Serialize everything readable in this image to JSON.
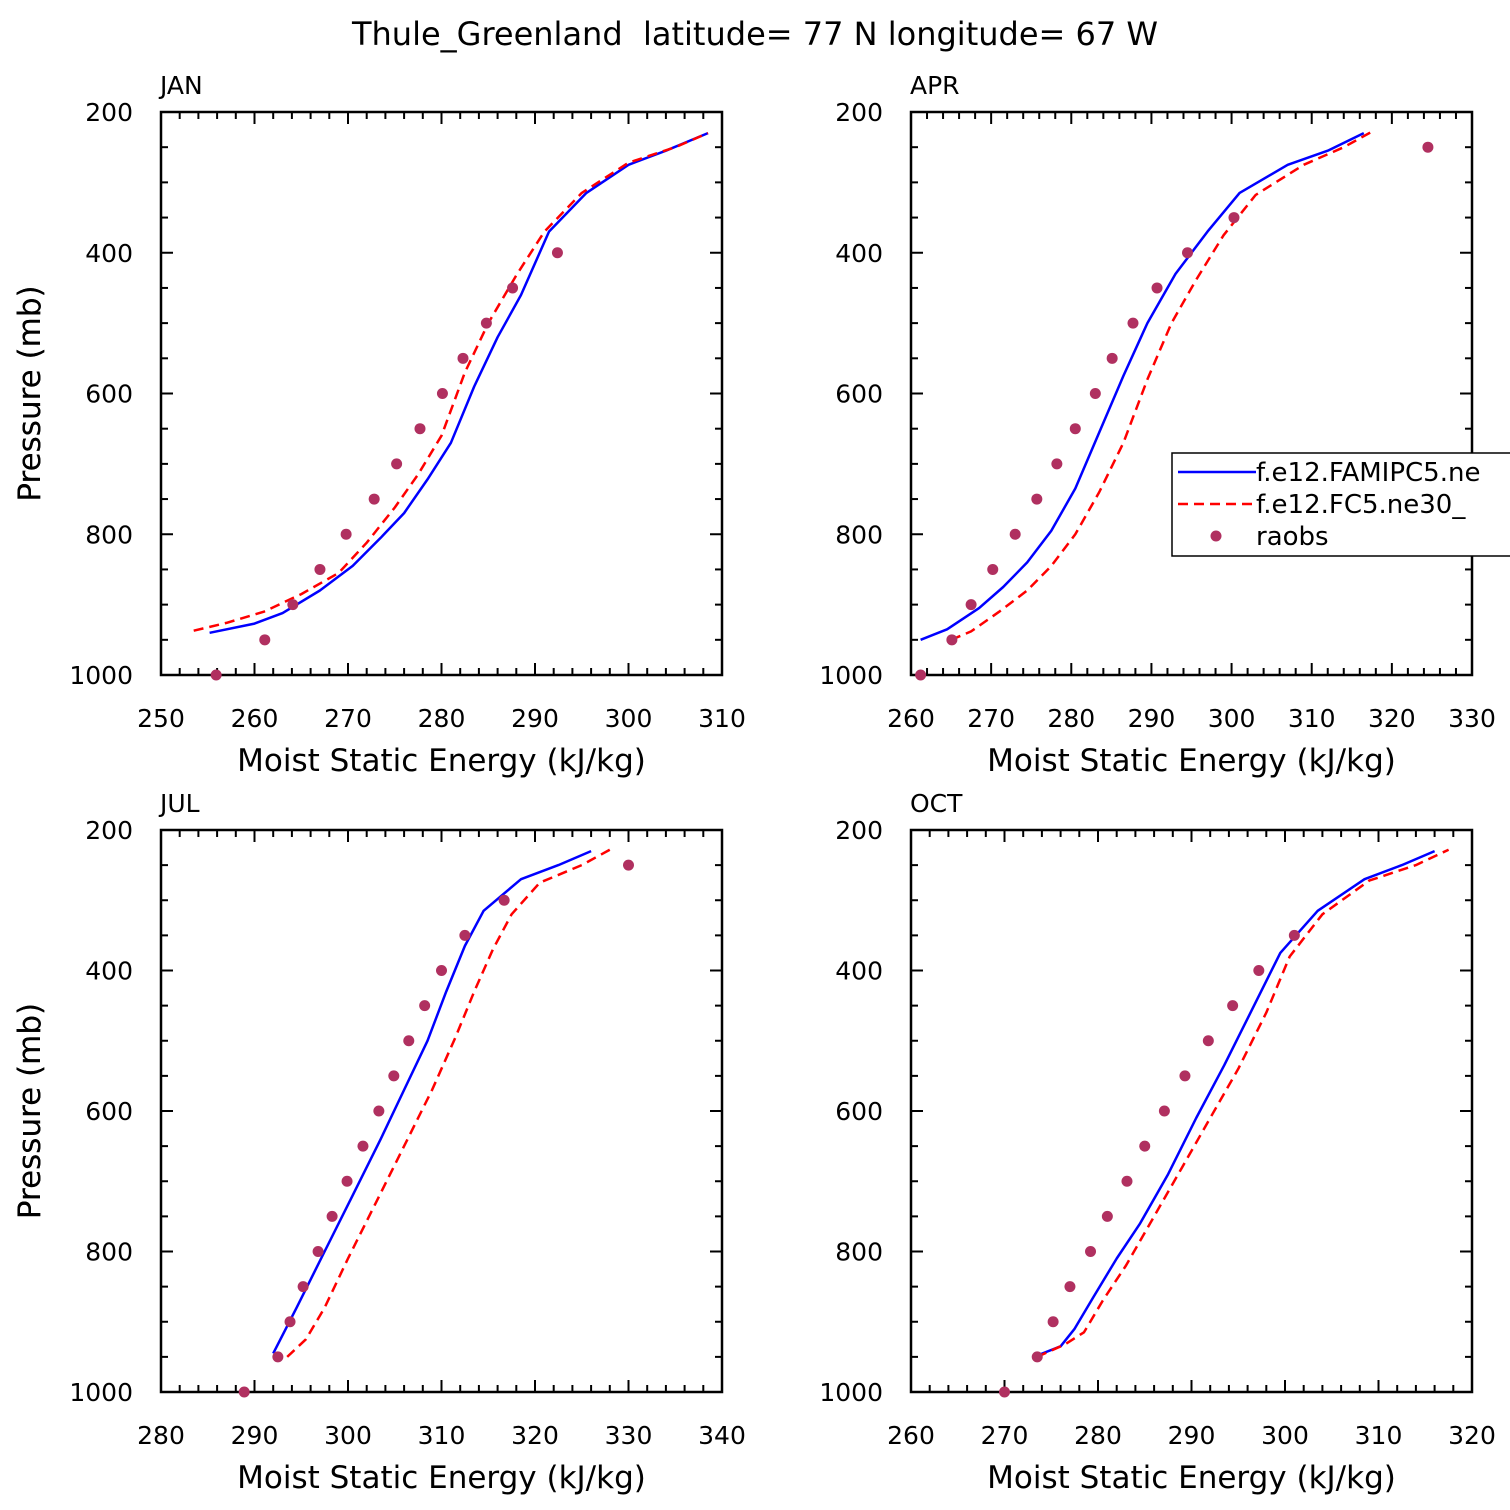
{
  "figure": {
    "title": "Thule_Greenland  latitude= 77 N longitude= 67 W"
  },
  "legend": {
    "entries": [
      {
        "label": "f.e12.FAMIPC5.ne",
        "color": "#0000ff",
        "style": "solid"
      },
      {
        "label": "f.e12.FC5.ne30_",
        "color": "#ff0000",
        "style": "dashed"
      },
      {
        "label": "raobs",
        "color": "#b03060",
        "style": "marker"
      }
    ]
  },
  "chart_data": [
    {
      "type": "line",
      "panel": "JAN",
      "xlabel": "Moist Static Energy (kJ/kg)",
      "ylabel": "Pressure (mb)",
      "xlim": [
        250,
        310
      ],
      "ylim": [
        1000,
        200
      ],
      "x_ticks": [
        250,
        260,
        270,
        280,
        290,
        300,
        310
      ],
      "y_ticks": [
        200,
        400,
        600,
        800,
        1000
      ],
      "series": [
        {
          "name": "f.e12.FAMIPC5.ne",
          "points": [
            [
              255.2,
              940
            ],
            [
              260,
              927
            ],
            [
              263,
              912
            ],
            [
              267,
              880
            ],
            [
              270.5,
              845
            ],
            [
              273.5,
              805
            ],
            [
              276,
              770
            ],
            [
              278.5,
              722
            ],
            [
              281,
              670
            ],
            [
              283.5,
              590
            ],
            [
              286,
              520
            ],
            [
              288.5,
              460
            ],
            [
              291.5,
              370
            ],
            [
              295.5,
              315
            ],
            [
              300,
              275
            ],
            [
              304,
              255
            ],
            [
              308.5,
              230
            ]
          ]
        },
        {
          "name": "f.e12.FC5.ne30_",
          "points": [
            [
              253.5,
              937
            ],
            [
              257,
              926
            ],
            [
              261,
              910
            ],
            [
              265,
              885
            ],
            [
              269,
              855
            ],
            [
              272,
              812
            ],
            [
              275,
              762
            ],
            [
              277.5,
              715
            ],
            [
              280,
              660
            ],
            [
              282.5,
              570
            ],
            [
              285,
              500
            ],
            [
              288,
              432
            ],
            [
              291,
              370
            ],
            [
              295,
              315
            ],
            [
              300,
              272
            ],
            [
              305,
              250
            ],
            [
              308.5,
              230
            ]
          ]
        },
        {
          "name": "raobs",
          "points": [
            [
              255.9,
              1000
            ],
            [
              261.1,
              950
            ],
            [
              264.1,
              900
            ],
            [
              267,
              850
            ],
            [
              269.8,
              800
            ],
            [
              272.8,
              750
            ],
            [
              275.2,
              700
            ],
            [
              277.7,
              650
            ],
            [
              280.1,
              600
            ],
            [
              282.3,
              550
            ],
            [
              284.8,
              500
            ],
            [
              287.6,
              450
            ],
            [
              292.4,
              400
            ]
          ]
        }
      ]
    },
    {
      "type": "line",
      "panel": "APR",
      "xlabel": "Moist Static Energy (kJ/kg)",
      "ylabel": "Pressure (mb)",
      "xlim": [
        260,
        330
      ],
      "ylim": [
        1000,
        200
      ],
      "x_ticks": [
        260,
        270,
        280,
        290,
        300,
        310,
        320,
        330
      ],
      "y_ticks": [
        200,
        400,
        600,
        800,
        1000
      ],
      "series": [
        {
          "name": "f.e12.FAMIPC5.ne",
          "points": [
            [
              261.2,
              950
            ],
            [
              264.5,
              935
            ],
            [
              268.5,
              905
            ],
            [
              271.5,
              875
            ],
            [
              274.5,
              840
            ],
            [
              277.5,
              795
            ],
            [
              280.5,
              735
            ],
            [
              283.5,
              655
            ],
            [
              286.5,
              575
            ],
            [
              289.5,
              500
            ],
            [
              293,
              430
            ],
            [
              297,
              370
            ],
            [
              301,
              315
            ],
            [
              307,
              275
            ],
            [
              312,
              255
            ],
            [
              316.5,
              230
            ]
          ]
        },
        {
          "name": "f.e12.FC5.ne30_",
          "points": [
            [
              265,
              950
            ],
            [
              267.5,
              938
            ],
            [
              271,
              910
            ],
            [
              274.5,
              880
            ],
            [
              277.5,
              845
            ],
            [
              280.5,
              800
            ],
            [
              283.5,
              740
            ],
            [
              286.5,
              670
            ],
            [
              289.5,
              580
            ],
            [
              292.5,
              500
            ],
            [
              295.5,
              440
            ],
            [
              299,
              375
            ],
            [
              303,
              318
            ],
            [
              309,
              275
            ],
            [
              314,
              250
            ],
            [
              317.5,
              228
            ]
          ]
        },
        {
          "name": "raobs",
          "points": [
            [
              261.2,
              1000
            ],
            [
              265.1,
              950
            ],
            [
              267.5,
              900
            ],
            [
              270.2,
              850
            ],
            [
              273,
              800
            ],
            [
              275.7,
              750
            ],
            [
              278.2,
              700
            ],
            [
              280.5,
              650
            ],
            [
              283,
              600
            ],
            [
              285.1,
              550
            ],
            [
              287.7,
              500
            ],
            [
              290.7,
              450
            ],
            [
              294.5,
              400
            ],
            [
              300.3,
              350
            ],
            [
              324.5,
              250
            ]
          ]
        }
      ]
    },
    {
      "type": "line",
      "panel": "JUL",
      "xlabel": "Moist Static Energy (kJ/kg)",
      "ylabel": "Pressure (mb)",
      "xlim": [
        280,
        340
      ],
      "ylim": [
        1000,
        200
      ],
      "x_ticks": [
        280,
        290,
        300,
        310,
        320,
        330,
        340
      ],
      "y_ticks": [
        200,
        400,
        600,
        800,
        1000
      ],
      "series": [
        {
          "name": "f.e12.FAMIPC5.ne",
          "points": [
            [
              292,
              945
            ],
            [
              294.5,
              880
            ],
            [
              297.5,
              800
            ],
            [
              300.5,
              720
            ],
            [
              303.5,
              640
            ],
            [
              306,
              570
            ],
            [
              308.5,
              500
            ],
            [
              310.5,
              430
            ],
            [
              312.5,
              365
            ],
            [
              314.5,
              315
            ],
            [
              318.5,
              270
            ],
            [
              322.5,
              250
            ],
            [
              326,
              230
            ]
          ]
        },
        {
          "name": "f.e12.FC5.ne30_",
          "points": [
            [
              293.5,
              950
            ],
            [
              295.5,
              925
            ],
            [
              297.5,
              880
            ],
            [
              300,
              810
            ],
            [
              303,
              730
            ],
            [
              306,
              650
            ],
            [
              309,
              570
            ],
            [
              311.5,
              495
            ],
            [
              313.5,
              430
            ],
            [
              315.5,
              370
            ],
            [
              317.5,
              320
            ],
            [
              320.5,
              275
            ],
            [
              325,
              250
            ],
            [
              328,
              228
            ]
          ]
        },
        {
          "name": "raobs",
          "points": [
            [
              288.9,
              1000
            ],
            [
              292.5,
              950
            ],
            [
              293.8,
              900
            ],
            [
              295.2,
              850
            ],
            [
              296.8,
              800
            ],
            [
              298.3,
              750
            ],
            [
              299.9,
              700
            ],
            [
              301.6,
              650
            ],
            [
              303.3,
              600
            ],
            [
              304.9,
              550
            ],
            [
              306.5,
              500
            ],
            [
              308.2,
              450
            ],
            [
              310,
              400
            ],
            [
              312.5,
              350
            ],
            [
              316.7,
              300
            ],
            [
              330,
              250
            ]
          ]
        }
      ]
    },
    {
      "type": "line",
      "panel": "OCT",
      "xlabel": "Moist Static Energy (kJ/kg)",
      "ylabel": "Pressure (mb)",
      "xlim": [
        260,
        320
      ],
      "ylim": [
        1000,
        200
      ],
      "x_ticks": [
        260,
        270,
        280,
        290,
        300,
        310,
        320
      ],
      "y_ticks": [
        200,
        400,
        600,
        800,
        1000
      ],
      "series": [
        {
          "name": "f.e12.FAMIPC5.ne",
          "points": [
            [
              273.5,
              948
            ],
            [
              276,
              935
            ],
            [
              277.5,
              910
            ],
            [
              279.5,
              865
            ],
            [
              282,
              810
            ],
            [
              284.5,
              760
            ],
            [
              287.5,
              690
            ],
            [
              290.5,
              610
            ],
            [
              293.5,
              535
            ],
            [
              296.5,
              455
            ],
            [
              299.5,
              375
            ],
            [
              303.5,
              315
            ],
            [
              308.5,
              270
            ],
            [
              312.5,
              250
            ],
            [
              316,
              230
            ]
          ]
        },
        {
          "name": "f.e12.FC5.ne30_",
          "points": [
            [
              273.5,
              950
            ],
            [
              276.5,
              932
            ],
            [
              278.5,
              915
            ],
            [
              280.5,
              870
            ],
            [
              283,
              820
            ],
            [
              286,
              750
            ],
            [
              289,
              680
            ],
            [
              292,
              610
            ],
            [
              295,
              540
            ],
            [
              298,
              460
            ],
            [
              300.5,
              380
            ],
            [
              304,
              320
            ],
            [
              309,
              272
            ],
            [
              314,
              250
            ],
            [
              317.5,
              228
            ]
          ]
        },
        {
          "name": "raobs",
          "points": [
            [
              270,
              1000
            ],
            [
              273.5,
              950
            ],
            [
              275.2,
              900
            ],
            [
              277,
              850
            ],
            [
              279.2,
              800
            ],
            [
              281,
              750
            ],
            [
              283.1,
              700
            ],
            [
              285,
              650
            ],
            [
              287.1,
              600
            ],
            [
              289.3,
              550
            ],
            [
              291.8,
              500
            ],
            [
              294.4,
              450
            ],
            [
              297.2,
              400
            ],
            [
              301,
              350
            ]
          ]
        }
      ]
    }
  ]
}
